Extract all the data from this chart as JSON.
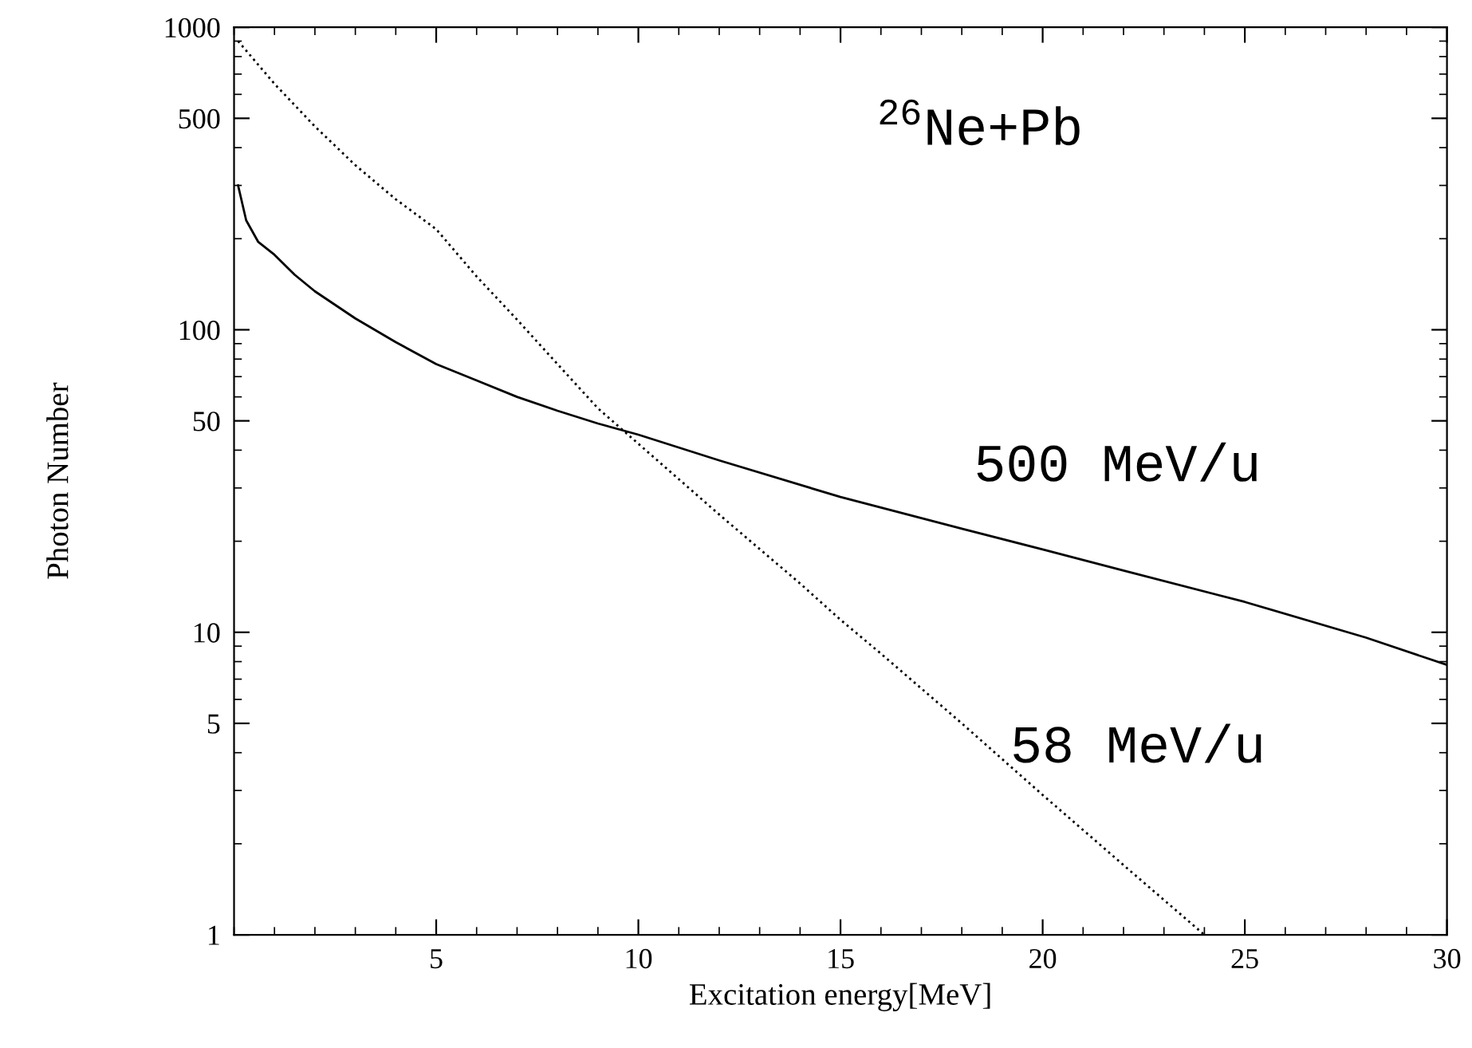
{
  "chart_data": {
    "type": "line",
    "xlabel": "Excitation energy[MeV]",
    "ylabel": "Photon Number",
    "log": "y",
    "xlim": [
      0,
      30
    ],
    "ylim": [
      1,
      1000
    ],
    "xticks": [
      5,
      10,
      15,
      20,
      25,
      30
    ],
    "yticks": [
      1,
      5,
      10,
      50,
      100,
      500,
      1000
    ],
    "grid": false,
    "legend": false,
    "annotations": [
      "$^{26}$Ne+Pb"
    ],
    "series": [
      {
        "name": "500 MeV/u",
        "color": "#000000",
        "line_style": "solid",
        "x": [
          0.1,
          0.3,
          0.6,
          1,
          1.5,
          2,
          3,
          4,
          5,
          6,
          7,
          8,
          9,
          10,
          12,
          15,
          18,
          20,
          22,
          25,
          28,
          30
        ],
        "values": [
          300,
          230,
          195,
          177,
          152,
          134,
          109,
          91,
          77,
          68,
          60,
          54,
          49,
          45,
          37,
          28,
          22,
          18.8,
          16,
          12.6,
          9.6,
          7.8
        ]
      },
      {
        "name": "58 MeV/u",
        "color": "#000000",
        "line_style": "dotted",
        "x": [
          0.1,
          1,
          2,
          3,
          4,
          5,
          6,
          7,
          8,
          9,
          10,
          12,
          14,
          15,
          16,
          18,
          20,
          22,
          24
        ],
        "values": [
          900,
          650,
          470,
          350,
          270,
          215,
          150,
          108,
          77,
          55,
          42,
          24.5,
          14.5,
          11,
          8.5,
          5,
          2.9,
          1.7,
          1
        ]
      }
    ]
  }
}
